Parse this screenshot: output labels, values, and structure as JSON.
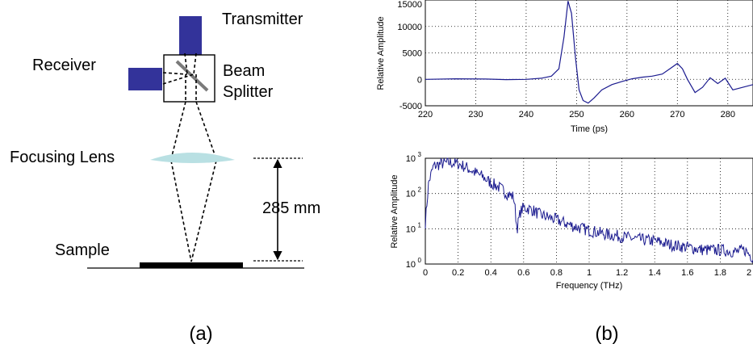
{
  "panel_a": {
    "label": "(a)",
    "transmitter_label": "Transmitter",
    "receiver_label": "Receiver",
    "beam_splitter_label_line1": "Beam",
    "beam_splitter_label_line2": "Splitter",
    "focusing_lens_label": "Focusing Lens",
    "distance_label": "285 mm",
    "sample_label": "Sample",
    "colors": {
      "block": "#33339a",
      "lens": "#b9e0e3",
      "sample": "#000000"
    }
  },
  "panel_b": {
    "label": "(b)"
  },
  "chart_data": [
    {
      "type": "line",
      "title": "",
      "xlabel": "Time (ps)",
      "ylabel": "Relative Amplitude",
      "xlim": [
        220,
        285
      ],
      "ylim": [
        -5000,
        15000
      ],
      "xticks": [
        220,
        230,
        240,
        250,
        260,
        270,
        280
      ],
      "yticks": [
        -5000,
        0,
        5000,
        10000,
        15000
      ],
      "grid": true,
      "color": "#1b1b8f",
      "series": [
        {
          "x": [
            220,
            226,
            232,
            236,
            240,
            243,
            245,
            246.5,
            247.5,
            248.3,
            249,
            249.8,
            250.5,
            251.3,
            252.3,
            253.5,
            255,
            257,
            259,
            261,
            263,
            265,
            267,
            268.5,
            270,
            271,
            272,
            273.5,
            275,
            276.5,
            278,
            279.5,
            281,
            283,
            285
          ],
          "y": [
            0,
            100,
            50,
            -50,
            0,
            200,
            600,
            2000,
            8000,
            14800,
            12500,
            4000,
            -2000,
            -4000,
            -4500,
            -3500,
            -2000,
            -1000,
            -400,
            100,
            400,
            600,
            1000,
            2000,
            3000,
            2000,
            0,
            -2500,
            -1500,
            300,
            -800,
            200,
            -2000,
            -1500,
            -1000
          ]
        }
      ]
    },
    {
      "type": "line",
      "title": "",
      "xlabel": "Frequency (THz)",
      "ylabel": "Relative Amplitude",
      "xlim": [
        0,
        2
      ],
      "ylim": [
        1,
        1000
      ],
      "yscale": "log",
      "xticks": [
        0,
        0.2,
        0.4,
        0.6,
        0.8,
        1,
        1.2,
        1.4,
        1.6,
        1.8,
        2
      ],
      "yticks": [
        "10^0",
        "10^1",
        "10^2",
        "10^3"
      ],
      "grid": true,
      "color": "#1b1b8f",
      "series": [
        {
          "x": [
            0,
            0.02,
            0.05,
            0.1,
            0.15,
            0.2,
            0.25,
            0.3,
            0.35,
            0.4,
            0.45,
            0.5,
            0.54,
            0.56,
            0.58,
            0.6,
            0.65,
            0.7,
            0.8,
            0.9,
            1.0,
            1.1,
            1.2,
            1.3,
            1.4,
            1.5,
            1.6,
            1.7,
            1.8,
            1.9,
            1.95,
            2.0
          ],
          "y": [
            15,
            200,
            600,
            700,
            750,
            700,
            550,
            400,
            300,
            200,
            150,
            100,
            80,
            10,
            30,
            40,
            35,
            25,
            18,
            12,
            9,
            7,
            6,
            5,
            4.5,
            3.5,
            3,
            2.5,
            2.5,
            2.2,
            2.5,
            1.5
          ]
        }
      ]
    }
  ]
}
